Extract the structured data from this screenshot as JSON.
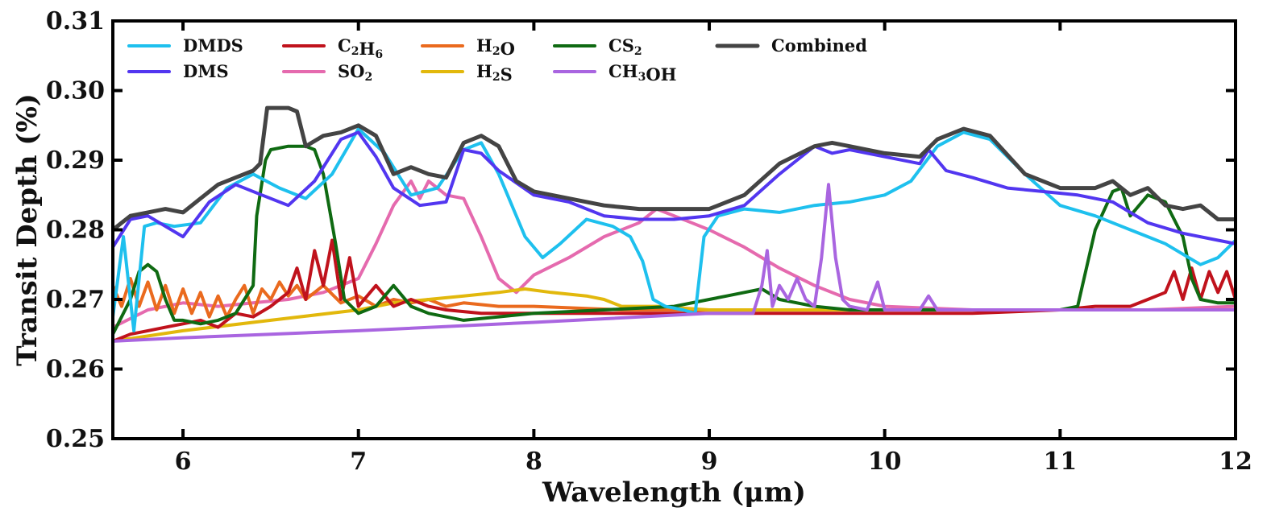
{
  "chart_data": {
    "type": "line",
    "title": "",
    "xlabel": "Wavelength (μm)",
    "ylabel": "Transit Depth (%)",
    "xlim": [
      5.6,
      12.0
    ],
    "ylim": [
      0.25,
      0.31
    ],
    "x_ticks": [
      6,
      7,
      8,
      9,
      10,
      11,
      12
    ],
    "x_tick_labels": [
      "6",
      "7",
      "8",
      "9",
      "10",
      "11",
      "12"
    ],
    "y_ticks": [
      0.25,
      0.26,
      0.27,
      0.28,
      0.29,
      0.3,
      0.31
    ],
    "y_tick_labels": [
      "0.25",
      "0.26",
      "0.27",
      "0.28",
      "0.29",
      "0.30",
      "0.31"
    ],
    "grid": false,
    "legend_position": "top-left",
    "series": [
      {
        "name": "DMDS",
        "label_main": "DMDS",
        "label_sub": "",
        "label_tail": "",
        "color": "#1ec0ee",
        "x": [
          5.6,
          5.66,
          5.72,
          5.78,
          5.85,
          5.95,
          6.1,
          6.25,
          6.4,
          6.55,
          6.7,
          6.85,
          7.0,
          7.15,
          7.3,
          7.45,
          7.6,
          7.7,
          7.8,
          7.95,
          8.05,
          8.15,
          8.3,
          8.45,
          8.55,
          8.62,
          8.68,
          8.75,
          8.85,
          8.92,
          8.97,
          9.05,
          9.2,
          9.4,
          9.6,
          9.8,
          10.0,
          10.15,
          10.3,
          10.45,
          10.6,
          10.8,
          11.0,
          11.2,
          11.4,
          11.5,
          11.6,
          11.7,
          11.8,
          11.9,
          12.0
        ],
        "y": [
          0.2675,
          0.279,
          0.2655,
          0.2805,
          0.281,
          0.2805,
          0.281,
          0.286,
          0.288,
          0.286,
          0.2845,
          0.288,
          0.2945,
          0.291,
          0.285,
          0.286,
          0.2915,
          0.2925,
          0.288,
          0.279,
          0.276,
          0.278,
          0.2815,
          0.2805,
          0.279,
          0.2755,
          0.27,
          0.269,
          0.2685,
          0.268,
          0.279,
          0.282,
          0.283,
          0.2825,
          0.2835,
          0.284,
          0.285,
          0.287,
          0.292,
          0.294,
          0.293,
          0.288,
          0.2835,
          0.282,
          0.28,
          0.279,
          0.278,
          0.2765,
          0.275,
          0.276,
          0.2785
        ]
      },
      {
        "name": "DMS",
        "label_main": "DMS",
        "label_sub": "",
        "label_tail": "",
        "color": "#5236f0",
        "x": [
          5.6,
          5.7,
          5.8,
          5.9,
          6.0,
          6.15,
          6.3,
          6.45,
          6.6,
          6.75,
          6.9,
          7.0,
          7.1,
          7.2,
          7.35,
          7.5,
          7.6,
          7.7,
          7.8,
          8.0,
          8.2,
          8.4,
          8.6,
          8.8,
          9.0,
          9.2,
          9.4,
          9.6,
          9.7,
          9.8,
          10.0,
          10.2,
          10.25,
          10.35,
          10.5,
          10.7,
          10.9,
          11.1,
          11.3,
          11.5,
          11.7,
          11.9,
          12.0
        ],
        "y": [
          0.2775,
          0.2815,
          0.282,
          0.2805,
          0.279,
          0.284,
          0.2865,
          0.285,
          0.2835,
          0.287,
          0.293,
          0.294,
          0.2905,
          0.286,
          0.2835,
          0.284,
          0.2915,
          0.291,
          0.2885,
          0.285,
          0.284,
          0.282,
          0.2815,
          0.2815,
          0.282,
          0.2835,
          0.288,
          0.292,
          0.291,
          0.2915,
          0.2905,
          0.2895,
          0.2915,
          0.2885,
          0.2875,
          0.286,
          0.2855,
          0.285,
          0.284,
          0.281,
          0.2795,
          0.2785,
          0.278
        ]
      },
      {
        "name": "C2H6",
        "label_main": "C",
        "label_sub": "2",
        "label_tail": "H",
        "label_sub2": "6",
        "color": "#c0121c",
        "x": [
          5.6,
          5.7,
          5.8,
          5.9,
          6.0,
          6.1,
          6.2,
          6.3,
          6.4,
          6.5,
          6.6,
          6.65,
          6.7,
          6.75,
          6.8,
          6.85,
          6.9,
          6.95,
          7.0,
          7.1,
          7.2,
          7.3,
          7.4,
          7.5,
          7.7,
          8.0,
          8.5,
          9.0,
          9.5,
          10.0,
          10.5,
          11.0,
          11.2,
          11.4,
          11.5,
          11.6,
          11.65,
          11.7,
          11.75,
          11.8,
          11.85,
          11.9,
          11.95,
          12.0
        ],
        "y": [
          0.264,
          0.265,
          0.2655,
          0.266,
          0.2665,
          0.267,
          0.266,
          0.268,
          0.2675,
          0.269,
          0.271,
          0.2745,
          0.27,
          0.277,
          0.272,
          0.2785,
          0.27,
          0.276,
          0.269,
          0.272,
          0.269,
          0.27,
          0.269,
          0.2685,
          0.268,
          0.268,
          0.268,
          0.268,
          0.268,
          0.268,
          0.268,
          0.2685,
          0.269,
          0.269,
          0.27,
          0.271,
          0.274,
          0.27,
          0.2745,
          0.27,
          0.274,
          0.271,
          0.274,
          0.27
        ]
      },
      {
        "name": "SO2",
        "label_main": "SO",
        "label_sub": "2",
        "label_tail": "",
        "color": "#e56aae",
        "x": [
          5.6,
          5.8,
          6.0,
          6.2,
          6.4,
          6.6,
          6.8,
          7.0,
          7.1,
          7.2,
          7.3,
          7.35,
          7.4,
          7.5,
          7.6,
          7.7,
          7.8,
          7.9,
          8.0,
          8.2,
          8.4,
          8.6,
          8.7,
          8.9,
          9.0,
          9.2,
          9.4,
          9.6,
          9.8,
          10.0,
          10.5,
          11.0,
          11.5,
          12.0
        ],
        "y": [
          0.266,
          0.2685,
          0.2695,
          0.269,
          0.2695,
          0.27,
          0.271,
          0.273,
          0.278,
          0.2835,
          0.287,
          0.2845,
          0.287,
          0.285,
          0.2845,
          0.279,
          0.273,
          0.271,
          0.2735,
          0.276,
          0.279,
          0.281,
          0.283,
          0.281,
          0.28,
          0.2775,
          0.2745,
          0.272,
          0.27,
          0.269,
          0.2685,
          0.2685,
          0.2685,
          0.269
        ]
      },
      {
        "name": "H2O",
        "label_main": "H",
        "label_sub": "2",
        "label_tail": "O",
        "color": "#ea6a1e",
        "x": [
          5.6,
          5.65,
          5.7,
          5.75,
          5.8,
          5.85,
          5.9,
          5.95,
          6.0,
          6.05,
          6.1,
          6.15,
          6.2,
          6.25,
          6.3,
          6.35,
          6.4,
          6.45,
          6.5,
          6.55,
          6.6,
          6.65,
          6.7,
          6.8,
          6.9,
          7.0,
          7.1,
          7.2,
          7.3,
          7.4,
          7.5,
          7.6,
          7.8,
          8.0,
          8.5,
          9.0,
          10.0,
          11.0,
          12.0
        ],
        "y": [
          0.272,
          0.269,
          0.273,
          0.269,
          0.2725,
          0.2685,
          0.272,
          0.268,
          0.2715,
          0.268,
          0.271,
          0.2675,
          0.2705,
          0.2675,
          0.27,
          0.272,
          0.268,
          0.2715,
          0.27,
          0.2725,
          0.2705,
          0.272,
          0.27,
          0.272,
          0.2695,
          0.2705,
          0.269,
          0.27,
          0.2695,
          0.27,
          0.269,
          0.2695,
          0.269,
          0.269,
          0.2685,
          0.2685,
          0.2685,
          0.2685,
          0.2685
        ]
      },
      {
        "name": "H2S",
        "label_main": "H",
        "label_sub": "2",
        "label_tail": "S",
        "color": "#e2b80c",
        "x": [
          5.6,
          6.0,
          6.5,
          7.0,
          7.2,
          7.4,
          7.6,
          7.8,
          7.95,
          8.1,
          8.3,
          8.4,
          8.5,
          8.7,
          9.0,
          9.5,
          10.0,
          11.0,
          12.0
        ],
        "y": [
          0.264,
          0.2655,
          0.267,
          0.2685,
          0.2695,
          0.27,
          0.2705,
          0.271,
          0.2715,
          0.271,
          0.2705,
          0.27,
          0.269,
          0.269,
          0.2685,
          0.2685,
          0.2685,
          0.2685,
          0.2685
        ]
      },
      {
        "name": "CS2",
        "label_main": "CS",
        "label_sub": "2",
        "label_tail": "",
        "color": "#0f6a12",
        "x": [
          5.6,
          5.7,
          5.75,
          5.8,
          5.85,
          5.9,
          5.95,
          6.0,
          6.1,
          6.2,
          6.3,
          6.4,
          6.42,
          6.47,
          6.5,
          6.6,
          6.7,
          6.75,
          6.8,
          6.87,
          6.92,
          7.0,
          7.1,
          7.2,
          7.3,
          7.4,
          7.6,
          7.8,
          8.0,
          8.4,
          8.8,
          9.0,
          9.1,
          9.2,
          9.3,
          9.4,
          9.5,
          9.6,
          9.8,
          10.0,
          10.5,
          11.0,
          11.1,
          11.2,
          11.3,
          11.35,
          11.4,
          11.5,
          11.6,
          11.7,
          11.75,
          11.8,
          11.9,
          12.0
        ],
        "y": [
          0.265,
          0.27,
          0.274,
          0.275,
          0.274,
          0.27,
          0.267,
          0.267,
          0.2665,
          0.267,
          0.268,
          0.272,
          0.282,
          0.29,
          0.2915,
          0.292,
          0.292,
          0.2915,
          0.288,
          0.278,
          0.27,
          0.268,
          0.269,
          0.272,
          0.269,
          0.268,
          0.267,
          0.2675,
          0.268,
          0.2685,
          0.269,
          0.27,
          0.2705,
          0.271,
          0.2715,
          0.27,
          0.2695,
          0.269,
          0.2685,
          0.2685,
          0.2685,
          0.2685,
          0.269,
          0.28,
          0.2855,
          0.286,
          0.282,
          0.285,
          0.284,
          0.279,
          0.273,
          0.27,
          0.2695,
          0.2695
        ]
      },
      {
        "name": "CH3OH",
        "label_main": "CH",
        "label_sub": "3",
        "label_tail": "OH",
        "color": "#a965e0",
        "x": [
          5.6,
          6.0,
          6.5,
          7.0,
          8.0,
          9.0,
          9.25,
          9.3,
          9.33,
          9.36,
          9.4,
          9.45,
          9.5,
          9.55,
          9.6,
          9.64,
          9.68,
          9.72,
          9.76,
          9.8,
          9.9,
          9.96,
          10.0,
          10.2,
          10.25,
          10.3,
          11.0,
          12.0
        ],
        "y": [
          0.264,
          0.2645,
          0.265,
          0.2655,
          0.2667,
          0.268,
          0.268,
          0.272,
          0.277,
          0.269,
          0.272,
          0.27,
          0.273,
          0.27,
          0.269,
          0.276,
          0.2865,
          0.276,
          0.27,
          0.269,
          0.2685,
          0.2725,
          0.2685,
          0.2685,
          0.2705,
          0.2685,
          0.2685,
          0.2685
        ]
      },
      {
        "name": "Combined",
        "label_main": "Combined",
        "label_sub": "",
        "label_tail": "",
        "color": "#444444",
        "x": [
          5.6,
          5.7,
          5.8,
          5.9,
          6.0,
          6.1,
          6.2,
          6.3,
          6.4,
          6.44,
          6.48,
          6.55,
          6.6,
          6.65,
          6.7,
          6.8,
          6.9,
          7.0,
          7.1,
          7.2,
          7.3,
          7.4,
          7.5,
          7.6,
          7.7,
          7.8,
          7.9,
          8.0,
          8.2,
          8.4,
          8.6,
          8.8,
          9.0,
          9.2,
          9.4,
          9.6,
          9.7,
          9.8,
          10.0,
          10.2,
          10.3,
          10.45,
          10.6,
          10.8,
          11.0,
          11.2,
          11.3,
          11.4,
          11.5,
          11.6,
          11.7,
          11.8,
          11.9,
          12.0
        ],
        "y": [
          0.28,
          0.282,
          0.2825,
          0.283,
          0.2825,
          0.2845,
          0.2865,
          0.2875,
          0.2885,
          0.2895,
          0.2975,
          0.2975,
          0.2975,
          0.297,
          0.292,
          0.2935,
          0.294,
          0.295,
          0.2935,
          0.288,
          0.289,
          0.288,
          0.2875,
          0.2925,
          0.2935,
          0.292,
          0.287,
          0.2855,
          0.2845,
          0.2835,
          0.283,
          0.283,
          0.283,
          0.285,
          0.2895,
          0.292,
          0.2925,
          0.292,
          0.291,
          0.2905,
          0.293,
          0.2945,
          0.2935,
          0.288,
          0.286,
          0.286,
          0.287,
          0.285,
          0.286,
          0.2835,
          0.283,
          0.2835,
          0.2815,
          0.2815
        ]
      }
    ]
  }
}
